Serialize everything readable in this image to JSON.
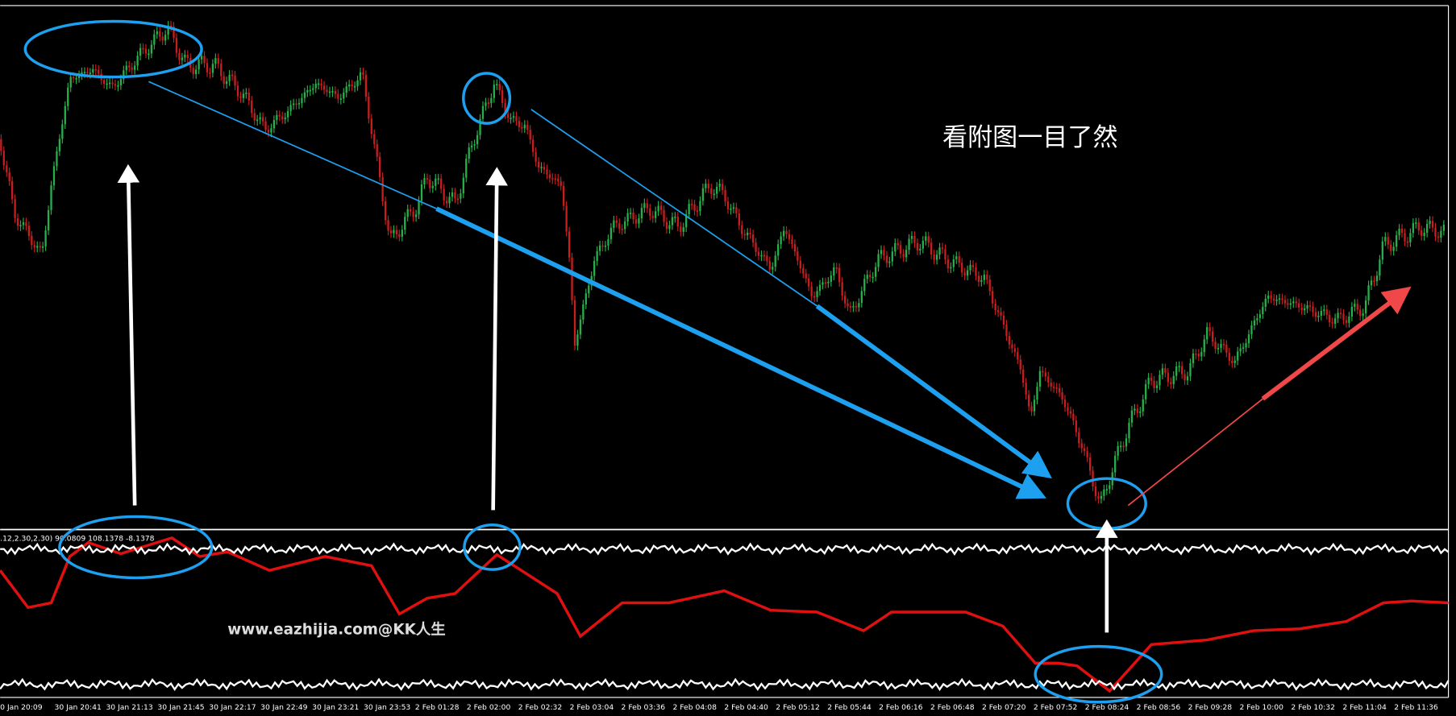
{
  "annotation": "看附图一目了然",
  "watermark": "www.eazhijia.com@KK人生",
  "indicator_label": ".12,2.30,2.30) 90.0809 108.1378 -8.1378",
  "time_axis": [
    "0 Jan 20:09",
    "30 Jan 20:41",
    "30 Jan 21:13",
    "30 Jan 21:45",
    "30 Jan 22:17",
    "30 Jan 22:49",
    "30 Jan 23:21",
    "30 Jan 23:53",
    "2 Feb 01:28",
    "2 Feb 02:00",
    "2 Feb 02:32",
    "2 Feb 03:04",
    "2 Feb 03:36",
    "2 Feb 04:08",
    "2 Feb 04:40",
    "2 Feb 05:12",
    "2 Feb 05:44",
    "2 Feb 06:16",
    "2 Feb 06:48",
    "2 Feb 07:20",
    "2 Feb 07:52",
    "2 Feb 08:24",
    "2 Feb 08:56",
    "2 Feb 09:28",
    "2 Feb 10:00",
    "2 Feb 10:32",
    "2 Feb 11:04",
    "2 Feb 11:36"
  ]
}
